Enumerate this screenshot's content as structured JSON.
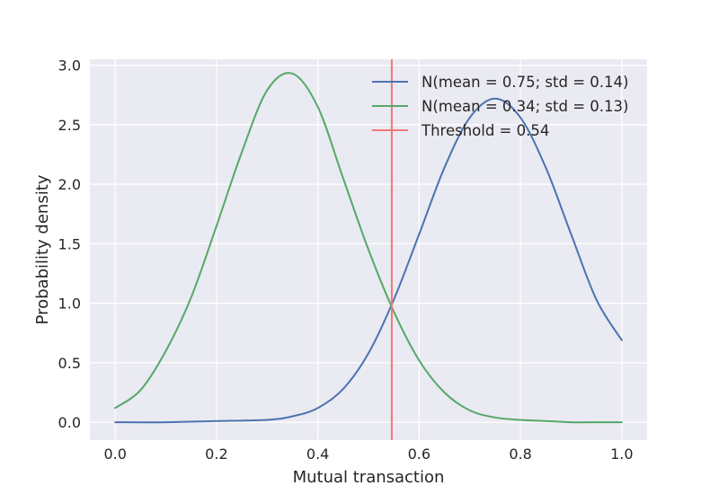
{
  "chart_data": {
    "type": "line",
    "title": "",
    "xlabel": "Mutual transaction",
    "ylabel": "Probability density",
    "xlim": [
      -0.05,
      1.05
    ],
    "ylim": [
      -0.15,
      3.05
    ],
    "grid": true,
    "legend_position": "top-right",
    "xticks": [
      {
        "value": 0.0,
        "label": "0.0"
      },
      {
        "value": 0.2,
        "label": "0.2"
      },
      {
        "value": 0.4,
        "label": "0.4"
      },
      {
        "value": 0.6,
        "label": "0.6"
      },
      {
        "value": 0.8,
        "label": "0.8"
      },
      {
        "value": 1.0,
        "label": "1.0"
      }
    ],
    "yticks": [
      {
        "value": 0.0,
        "label": "0.0"
      },
      {
        "value": 0.5,
        "label": "0.5"
      },
      {
        "value": 1.0,
        "label": "1.0"
      },
      {
        "value": 1.5,
        "label": "1.5"
      },
      {
        "value": 2.0,
        "label": "2.0"
      },
      {
        "value": 2.5,
        "label": "2.5"
      },
      {
        "value": 3.0,
        "label": "3.0"
      }
    ],
    "series": [
      {
        "name": "N(mean = 0.75; std = 0.14)",
        "color": "#4c72b0",
        "x": [
          0.0,
          0.1,
          0.2,
          0.3,
          0.35,
          0.4,
          0.45,
          0.5,
          0.55,
          0.6,
          0.65,
          0.7,
          0.75,
          0.8,
          0.85,
          0.9,
          0.95,
          1.0
        ],
        "y": [
          0.0,
          0.0,
          0.01,
          0.02,
          0.05,
          0.12,
          0.28,
          0.58,
          1.03,
          1.58,
          2.14,
          2.56,
          2.72,
          2.56,
          2.14,
          1.58,
          1.03,
          0.69
        ]
      },
      {
        "name": "N(mean = 0.34; std = 0.13)",
        "color": "#55a868",
        "x": [
          0.0,
          0.05,
          0.1,
          0.15,
          0.2,
          0.25,
          0.3,
          0.35,
          0.4,
          0.45,
          0.5,
          0.55,
          0.6,
          0.65,
          0.7,
          0.75,
          0.8,
          0.85,
          0.9,
          0.95,
          1.0
        ],
        "y": [
          0.12,
          0.27,
          0.6,
          1.05,
          1.65,
          2.27,
          2.79,
          2.93,
          2.65,
          2.05,
          1.45,
          0.93,
          0.52,
          0.25,
          0.1,
          0.04,
          0.02,
          0.01,
          0.0,
          0.0,
          0.0
        ]
      }
    ],
    "threshold": {
      "name": "Threshold = 0.54",
      "x": 0.546,
      "color": "#f07878"
    }
  }
}
